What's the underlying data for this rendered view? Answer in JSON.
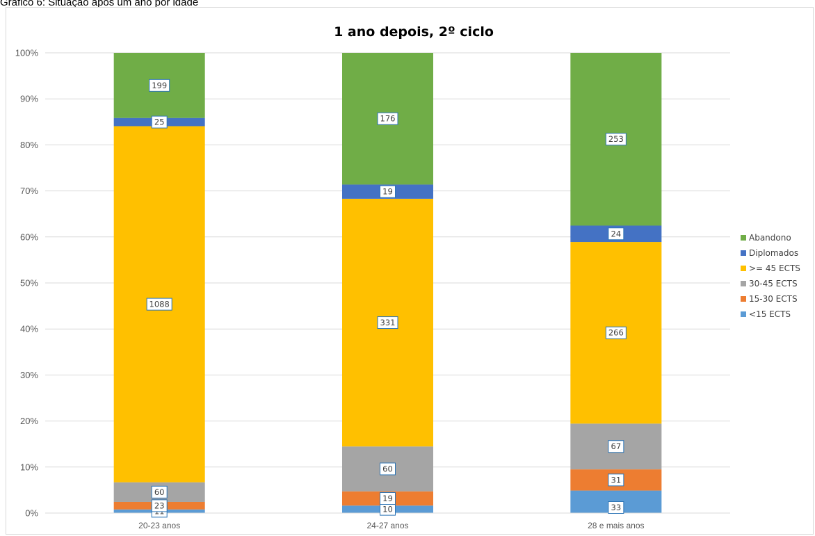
{
  "caption": "Gráfico 6: Situação após um ano por idade",
  "chart_data": {
    "type": "bar",
    "stacked": "percent",
    "title": "1 ano depois, 2º ciclo",
    "categories": [
      "20-23 anos",
      "24-27 anos",
      "28 e mais anos"
    ],
    "y_ticks": [
      "0%",
      "10%",
      "20%",
      "30%",
      "40%",
      "50%",
      "60%",
      "70%",
      "80%",
      "90%",
      "100%"
    ],
    "ylim": [
      0,
      100
    ],
    "grid": true,
    "legend_position": "right",
    "series": [
      {
        "name": "<15 ECTS",
        "color": "#5b9bd5",
        "values": [
          11,
          10,
          33
        ]
      },
      {
        "name": "15-30 ECTS",
        "color": "#ed7d31",
        "values": [
          23,
          19,
          31
        ]
      },
      {
        "name": "30-45 ECTS",
        "color": "#a5a5a5",
        "values": [
          60,
          60,
          67
        ]
      },
      {
        "name": ">= 45 ECTS",
        "color": "#ffc000",
        "values": [
          1088,
          331,
          266
        ]
      },
      {
        "name": "Diplomados",
        "color": "#4472c4",
        "values": [
          25,
          19,
          24
        ]
      },
      {
        "name": "Abandono",
        "color": "#70ad47",
        "values": [
          199,
          176,
          253
        ]
      }
    ]
  }
}
